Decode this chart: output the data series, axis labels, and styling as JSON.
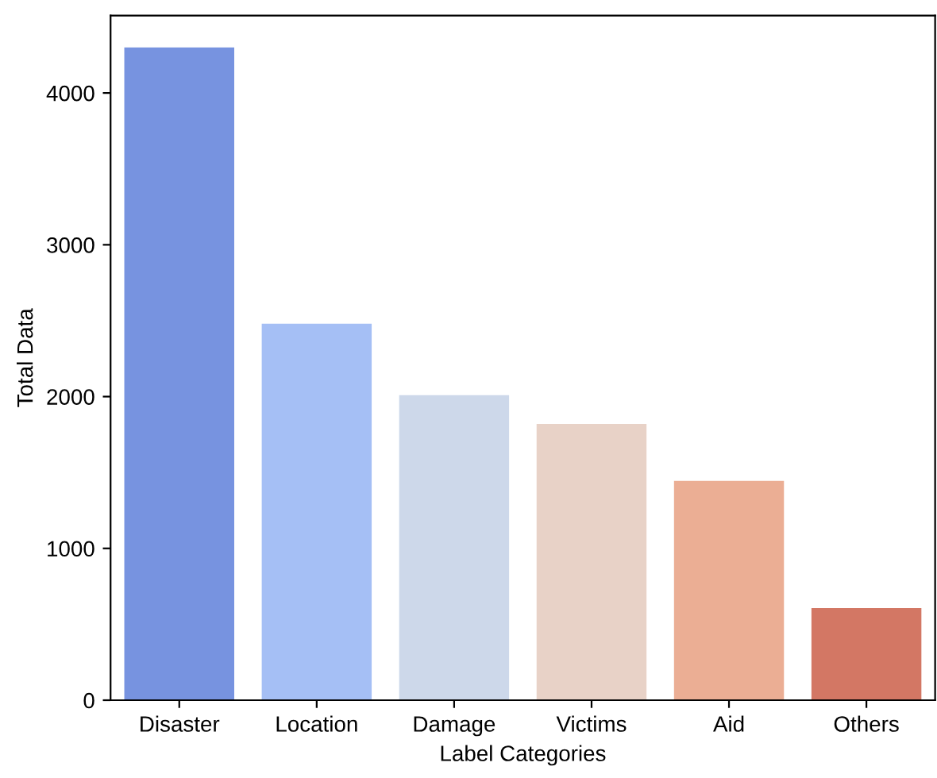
{
  "chart_data": {
    "type": "bar",
    "xlabel": "Label Categories",
    "ylabel": "Total Data",
    "categories": [
      "Disaster",
      "Location",
      "Damage",
      "Victims",
      "Aid",
      "Others"
    ],
    "values": [
      4300,
      2480,
      2010,
      1820,
      1445,
      607
    ],
    "colors": [
      "#7793e0",
      "#a5bff5",
      "#cdd8ea",
      "#e8d2c7",
      "#ebae94",
      "#d37764"
    ],
    "ylim": [
      0,
      4510
    ],
    "yticks": [
      0,
      1000,
      2000,
      3000,
      4000
    ]
  }
}
